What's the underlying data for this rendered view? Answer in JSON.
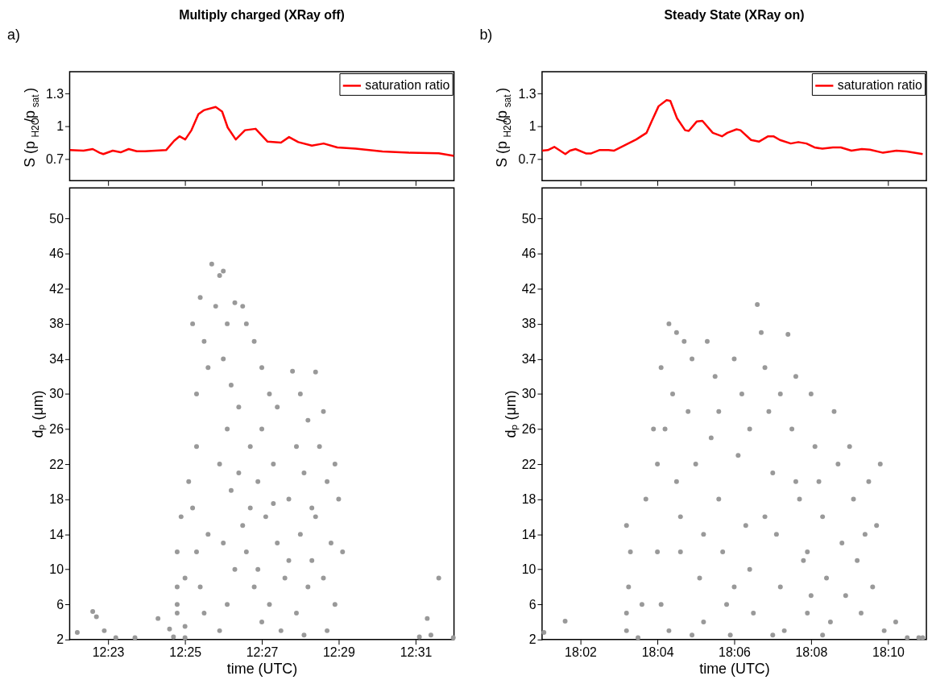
{
  "chart_data": [
    {
      "type": "line",
      "title": "Multiply charged (XRay off)",
      "ylabel": "S (p$_{H2O}$/p$_{sat}$)",
      "annotations": [
        "a)"
      ],
      "legend": "top right",
      "tick_labels": "y",
      "xlim": [
        12.3667,
        12.5333
      ],
      "xticks": [
        {
          "value": 12.3833,
          "label": null
        },
        {
          "value": 12.4167,
          "label": null
        },
        {
          "value": 12.45,
          "label": null
        },
        {
          "value": 12.4833,
          "label": null
        },
        {
          "value": 12.5167,
          "label": null
        }
      ],
      "ylim": [
        0.5,
        1.5
      ],
      "yticks": [
        0.7,
        1,
        1.3
      ],
      "series": [
        {
          "name": "saturation ratio",
          "color": "#ff0000",
          "x": [
            12.3668,
            12.3727,
            12.3767,
            12.3797,
            12.3813,
            12.3854,
            12.3888,
            12.3923,
            12.3958,
            12.3993,
            12.4085,
            12.412,
            12.4143,
            12.4168,
            12.4195,
            12.4225,
            12.4248,
            12.43,
            12.4328,
            12.4352,
            12.4387,
            12.4427,
            12.4473,
            12.4525,
            12.4583,
            12.4618,
            12.4658,
            12.4717,
            12.4768,
            12.4827,
            12.4907,
            12.5023,
            12.5138,
            12.5267,
            12.5333
          ],
          "values": [
            0.78,
            0.775,
            0.79,
            0.756,
            0.744,
            0.775,
            0.76,
            0.79,
            0.77,
            0.77,
            0.78,
            0.866,
            0.907,
            0.878,
            0.963,
            1.11,
            1.146,
            1.176,
            1.134,
            0.988,
            0.878,
            0.963,
            0.976,
            0.858,
            0.849,
            0.9,
            0.854,
            0.822,
            0.841,
            0.805,
            0.793,
            0.768,
            0.756,
            0.751,
            0.727
          ]
        }
      ]
    },
    {
      "type": "scatter",
      "xlabel": "time (UTC)",
      "ylabel": "dₚ (μm)",
      "marker": "circle",
      "xlim": [
        12.3667,
        12.5333
      ],
      "xticks": [
        {
          "value": 12.3833,
          "label": "12:23"
        },
        {
          "value": 12.4167,
          "label": "12:25"
        },
        {
          "value": 12.45,
          "label": "12:27"
        },
        {
          "value": 12.4833,
          "label": "12:29"
        },
        {
          "value": 12.5167,
          "label": "12:31"
        }
      ],
      "ylim": [
        2,
        53.5
      ],
      "yticks": [
        2,
        6,
        10,
        14,
        18,
        22,
        26,
        30,
        34,
        38,
        42,
        46,
        50
      ],
      "series": [
        {
          "color": "#999999",
          "x": [
            12.37,
            12.3767,
            12.3783,
            12.3817,
            12.3867,
            12.395,
            12.405,
            12.41,
            12.4117,
            12.4133,
            12.4133,
            12.4133,
            12.415,
            12.4133,
            12.4167,
            12.42,
            12.4233,
            12.425,
            12.4267,
            12.4217,
            12.4217,
            12.4183,
            12.42,
            12.4217,
            12.4233,
            12.425,
            12.4283,
            12.4317,
            12.4333,
            12.43,
            12.435,
            12.4383,
            12.4417,
            12.4433,
            12.4467,
            12.4333,
            12.4367,
            12.44,
            12.435,
            12.4317,
            12.4367,
            12.4417,
            12.4333,
            12.4383,
            12.435,
            12.4317,
            12.445,
            12.45,
            12.4533,
            12.4567,
            12.45,
            12.455,
            12.4483,
            12.4517,
            12.4567,
            12.46,
            12.4533,
            12.4583,
            12.4633,
            12.4667,
            12.47,
            12.465,
            12.4683,
            12.4617,
            12.4667,
            12.4717,
            12.47,
            12.465,
            12.4683,
            12.4733,
            12.4767,
            12.475,
            12.4783,
            12.4733,
            12.48,
            12.4767,
            12.4817,
            12.4783,
            12.4833,
            12.485,
            12.4817,
            12.4433,
            12.4467,
            12.45,
            12.44,
            12.445,
            12.4617,
            12.455,
            12.4483,
            12.4717,
            12.4267,
            12.5217,
            12.5233,
            12.5183,
            12.5267,
            12.533,
            12.4167,
            12.4167
          ],
          "values": [
            2.8,
            5.2,
            4.6,
            3.0,
            2.2,
            2.2,
            4.4,
            3.2,
            2.3,
            6,
            8,
            12,
            16,
            5,
            2.2,
            38,
            41,
            36,
            33,
            30,
            24,
            20,
            17,
            12,
            8,
            5,
            44.8,
            43.5,
            44,
            40,
            38,
            40.4,
            40,
            38,
            36,
            34,
            31,
            28.5,
            26,
            22,
            19,
            15,
            13,
            10,
            6,
            3,
            24,
            33,
            30,
            28.5,
            26,
            22,
            20,
            16,
            13,
            9,
            6,
            3,
            32.6,
            30,
            27,
            24,
            21,
            18,
            14,
            11,
            8,
            5,
            2.5,
            32.5,
            28,
            24,
            20,
            16,
            13,
            9,
            6,
            3,
            18,
            12,
            22,
            12,
            8,
            4,
            21,
            17,
            11,
            17.5,
            10,
            17,
            14,
            4.4,
            2.5,
            2.3,
            9,
            2.2,
            3.5,
            9
          ]
        }
      ]
    },
    {
      "type": "line",
      "title": "Steady State (XRay on)",
      "ylabel": "S (p$_{H2O}$/p$_{sat}$)",
      "annotations": [
        "b)"
      ],
      "legend": "top right",
      "tick_labels": "y",
      "xlim": [
        18.0167,
        18.1833
      ],
      "xticks": [
        {
          "value": 18.0333,
          "label": null
        },
        {
          "value": 18.0667,
          "label": null
        },
        {
          "value": 18.1,
          "label": null
        },
        {
          "value": 18.1333,
          "label": null
        },
        {
          "value": 18.1667,
          "label": null
        }
      ],
      "ylim": [
        0.5,
        1.5
      ],
      "yticks": [
        0.7,
        1,
        1.3
      ],
      "series": [
        {
          "name": "saturation ratio",
          "color": "#ff0000",
          "x": [
            18.0167,
            18.0192,
            18.022,
            18.0268,
            18.0288,
            18.0312,
            18.0357,
            18.038,
            18.0415,
            18.0455,
            18.0478,
            18.0575,
            18.062,
            18.0643,
            18.0672,
            18.0707,
            18.0723,
            18.0752,
            18.0787,
            18.0803,
            18.0838,
            18.0862,
            18.0907,
            18.0947,
            18.097,
            18.101,
            18.1027,
            18.1073,
            18.1107,
            18.1147,
            18.117,
            18.1198,
            18.1245,
            18.1278,
            18.1313,
            18.1348,
            18.1382,
            18.1428,
            18.1462,
            18.1508,
            18.1553,
            18.1588,
            18.1645,
            18.1703,
            18.1748,
            18.1817
          ],
          "values": [
            0.775,
            0.78,
            0.81,
            0.744,
            0.775,
            0.79,
            0.75,
            0.75,
            0.78,
            0.78,
            0.775,
            0.878,
            0.939,
            1.049,
            1.183,
            1.239,
            1.232,
            1.073,
            0.963,
            0.956,
            1.044,
            1.049,
            0.939,
            0.907,
            0.939,
            0.971,
            0.963,
            0.873,
            0.858,
            0.907,
            0.907,
            0.873,
            0.841,
            0.854,
            0.841,
            0.805,
            0.793,
            0.805,
            0.805,
            0.775,
            0.79,
            0.785,
            0.756,
            0.775,
            0.768,
            0.744
          ]
        }
      ]
    },
    {
      "type": "scatter",
      "xlabel": "time (UTC)",
      "ylabel": "dₚ (μm)",
      "marker": "circle",
      "xlim": [
        18.0167,
        18.1833
      ],
      "xticks": [
        {
          "value": 18.0333,
          "label": "18:02"
        },
        {
          "value": 18.0667,
          "label": "18:04"
        },
        {
          "value": 18.1,
          "label": "18:06"
        },
        {
          "value": 18.1333,
          "label": "18:08"
        },
        {
          "value": 18.1667,
          "label": "18:10"
        }
      ],
      "ylim": [
        2,
        53.5
      ],
      "yticks": [
        2,
        6,
        10,
        14,
        18,
        22,
        26,
        30,
        34,
        38,
        42,
        46,
        50
      ],
      "series": [
        {
          "color": "#999999",
          "x": [
            18.0175,
            18.0267,
            18.0533,
            18.0542,
            18.0533,
            18.055,
            18.0533,
            18.0583,
            18.06,
            18.0617,
            18.065,
            18.0667,
            18.0683,
            18.0717,
            18.075,
            18.0783,
            18.0733,
            18.07,
            18.0667,
            18.0683,
            18.0717,
            18.075,
            18.0767,
            18.08,
            18.0817,
            18.0833,
            18.085,
            18.0867,
            18.0883,
            18.0917,
            18.09,
            18.0933,
            18.095,
            18.0967,
            18.0983,
            18.1,
            18.1033,
            18.1017,
            18.105,
            18.1067,
            18.1083,
            18.11,
            18.1117,
            18.1133,
            18.115,
            18.1167,
            18.1183,
            18.12,
            18.1217,
            18.1233,
            18.1267,
            18.125,
            18.1283,
            18.13,
            18.1317,
            18.1333,
            18.135,
            18.1367,
            18.1383,
            18.14,
            18.1417,
            18.1433,
            18.145,
            18.1467,
            18.1483,
            18.15,
            18.1517,
            18.1533,
            18.155,
            18.1583,
            18.1567,
            18.16,
            18.1617,
            18.165,
            18.17,
            18.175,
            18.18,
            18.1817,
            18.1633,
            18.0767,
            18.0867,
            18.1,
            18.1133,
            18.1267,
            18.1333,
            18.0933,
            18.1067,
            18.12,
            18.1317,
            18.0817,
            18.1167,
            18.1383
          ],
          "values": [
            2.8,
            4.1,
            5,
            8,
            3,
            12,
            15,
            2.2,
            6,
            18,
            26,
            22,
            33,
            38,
            37,
            36,
            30,
            26,
            12,
            6,
            3,
            20,
            16,
            28,
            34,
            22,
            9,
            4,
            36,
            32,
            25,
            18,
            12,
            6,
            2.5,
            34,
            30,
            23,
            15,
            10,
            5,
            40.2,
            37,
            33,
            28,
            21,
            14,
            8,
            3,
            36.8,
            32,
            26,
            18,
            11,
            5,
            30,
            24,
            20,
            16,
            9,
            4,
            28,
            22,
            13,
            7,
            24,
            18,
            11,
            5,
            20,
            14,
            8,
            15,
            3,
            4,
            2.2,
            2.2,
            2.2,
            22,
            12,
            14,
            8,
            16,
            20,
            7,
            28,
            26,
            30,
            12,
            2.5,
            2.5,
            2.5
          ]
        }
      ]
    }
  ]
}
